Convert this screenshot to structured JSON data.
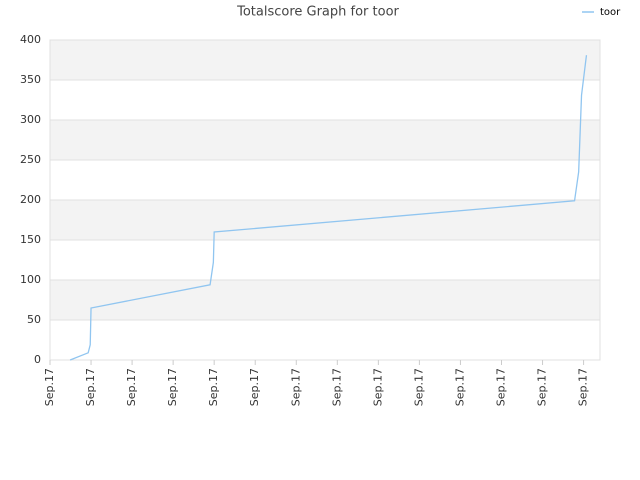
{
  "chart_data": {
    "type": "line",
    "title": "Totalscore Graph for toor",
    "series": [
      {
        "name": "toor",
        "color": "#90c5f0",
        "x": [
          0.49,
          0.93,
          0.98,
          1.0,
          3.9,
          3.98,
          4.0,
          12.78,
          12.88,
          12.95,
          13.07
        ],
        "values": [
          0,
          9,
          19,
          65,
          94,
          122,
          160,
          199,
          235,
          331,
          381
        ]
      }
    ],
    "xlim": [
      0,
      13.4
    ],
    "xticks": [
      {
        "value": 0,
        "label": "Sep.17"
      },
      {
        "value": 1,
        "label": "Sep.17"
      },
      {
        "value": 2,
        "label": "Sep.17"
      },
      {
        "value": 3,
        "label": "Sep.17"
      },
      {
        "value": 4,
        "label": "Sep.17"
      },
      {
        "value": 5,
        "label": "Sep.17"
      },
      {
        "value": 6,
        "label": "Sep.17"
      },
      {
        "value": 7,
        "label": "Sep.17"
      },
      {
        "value": 8,
        "label": "Sep.17"
      },
      {
        "value": 9,
        "label": "Sep.17"
      },
      {
        "value": 10,
        "label": "Sep.17"
      },
      {
        "value": 11,
        "label": "Sep.17"
      },
      {
        "value": 12,
        "label": "Sep.17"
      },
      {
        "value": 13,
        "label": "Sep.17"
      }
    ],
    "ylim": [
      0,
      400
    ],
    "yticks": [
      0,
      50,
      100,
      150,
      200,
      250,
      300,
      350,
      400
    ],
    "grid": true,
    "legend": "top-right"
  }
}
